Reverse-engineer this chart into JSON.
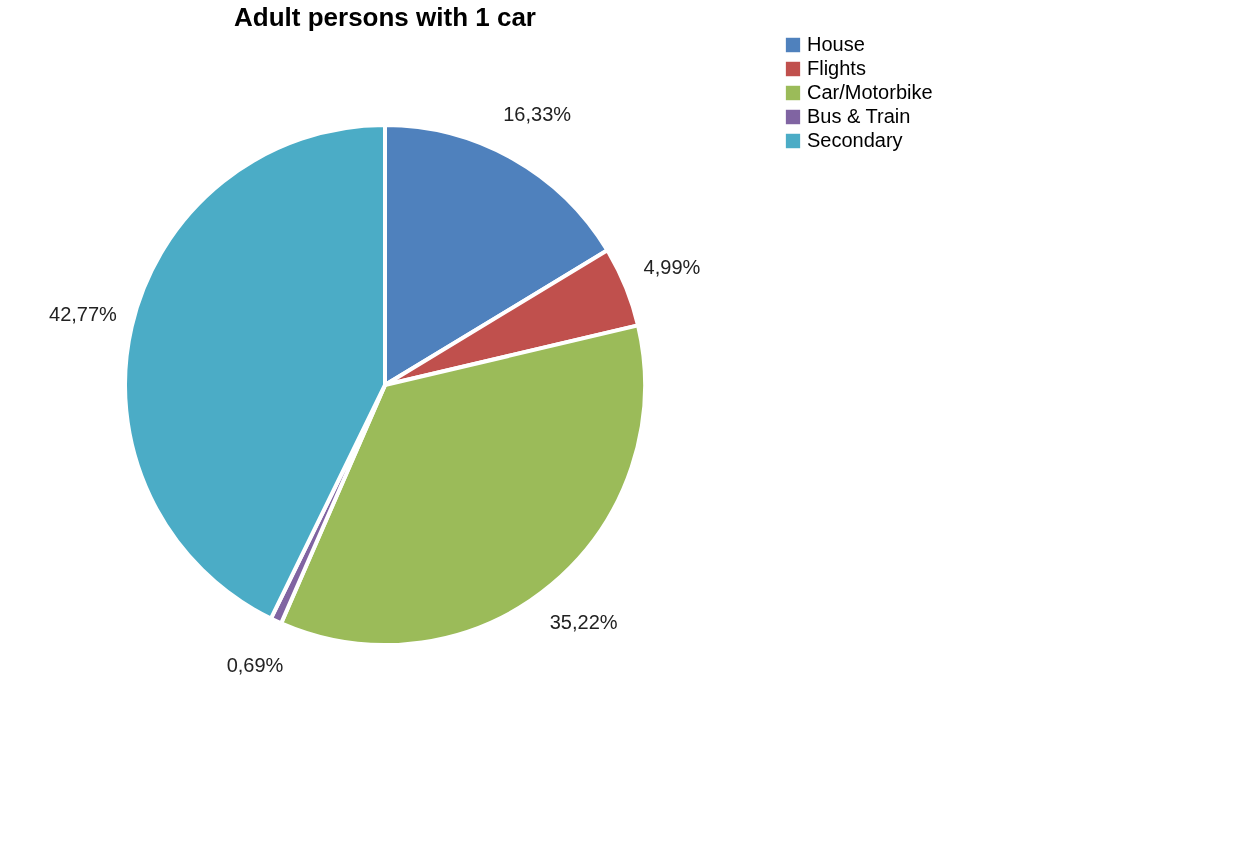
{
  "chart_data": {
    "type": "pie",
    "title": "Adult persons with 1 car",
    "categories": [
      "House",
      "Flights",
      "Car/Motorbike",
      "Bus & Train",
      "Secondary"
    ],
    "values": [
      16.33,
      4.99,
      35.22,
      0.69,
      42.77
    ],
    "colors": [
      "#4f81bd",
      "#c0504d",
      "#9bbb59",
      "#8064a2",
      "#4bacc6"
    ],
    "value_labels": [
      "16,33%",
      "4,99%",
      "35,22%",
      "0,69%",
      "42,77%"
    ],
    "legend": "right"
  }
}
